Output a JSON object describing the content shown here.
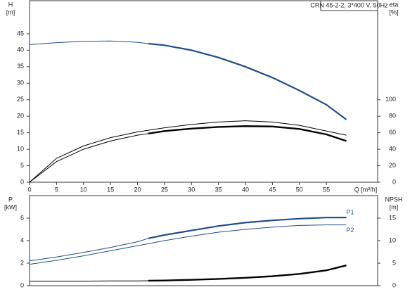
{
  "chart_data": [
    {
      "type": "line",
      "title": "CRN 45-2-2, 3*400 V, 50Hz",
      "x_label": "Q [m³/h]",
      "y_label": "H",
      "y_unit": "[m]",
      "y2_label": "eta",
      "y2_unit": "[%]",
      "xlim": [
        0,
        64.5
      ],
      "xticks": [
        0,
        5,
        10,
        15,
        20,
        25,
        30,
        35,
        40,
        45,
        50,
        55
      ],
      "ylim": [
        0,
        55
      ],
      "yticks": [
        0,
        5,
        10,
        15,
        20,
        25,
        30,
        35,
        40,
        45
      ],
      "y2lim": [
        0,
        220
      ],
      "y2ticks": [
        0,
        20,
        40,
        60,
        80,
        100
      ],
      "series": [
        {
          "color": "#1f4e8c",
          "width": 1,
          "x": [
            0,
            5,
            10,
            15,
            20,
            22
          ],
          "values": [
            41.7,
            42.3,
            42.7,
            42.8,
            42.4,
            42.0
          ]
        },
        {
          "color": "#1f4e8c",
          "width": 2.2,
          "x": [
            22,
            25,
            30,
            35,
            40,
            45,
            50,
            55,
            58.7
          ],
          "values": [
            42.0,
            41.5,
            40.0,
            37.8,
            35.0,
            31.7,
            27.8,
            23.5,
            19.0
          ]
        },
        {
          "color": "#000000",
          "width": 1,
          "axis": "y2",
          "x": [
            0,
            5,
            10,
            15,
            20,
            25,
            30,
            35,
            40,
            45,
            50,
            55,
            58.7
          ],
          "values": [
            0,
            29,
            44,
            54,
            61,
            66,
            70,
            73,
            74.5,
            73,
            69,
            62,
            57
          ]
        },
        {
          "color": "#000000",
          "width": 1,
          "axis": "y2",
          "x": [
            0,
            5,
            10,
            15,
            20,
            22
          ],
          "values": [
            0,
            25,
            40,
            50,
            57,
            59
          ]
        },
        {
          "color": "#000000",
          "width": 2.4,
          "axis": "y2",
          "x": [
            22,
            25,
            30,
            35,
            40,
            45,
            50,
            55,
            58.7
          ],
          "values": [
            59,
            62,
            65,
            67,
            68,
            67.5,
            64.5,
            58,
            50
          ]
        }
      ]
    },
    {
      "type": "line",
      "y_label": "P",
      "y_unit": "[kW]",
      "y2_label": "NPSH",
      "y2_unit": "[m]",
      "xlim": [
        0,
        64.5
      ],
      "ylim": [
        0,
        8
      ],
      "yticks": [
        0,
        2,
        4,
        6
      ],
      "y2lim": [
        0,
        20
      ],
      "y2ticks": [
        0,
        5,
        10,
        15
      ],
      "series": [
        {
          "color": "#1f4e8c",
          "width": 1,
          "x": [
            0,
            5,
            10,
            15,
            20,
            22
          ],
          "values": [
            2.2,
            2.55,
            2.95,
            3.4,
            3.9,
            4.2
          ]
        },
        {
          "name": "P1",
          "color": "#1f4e8c",
          "width": 2.2,
          "x": [
            22,
            25,
            30,
            35,
            40,
            45,
            50,
            55,
            58.7
          ],
          "values": [
            4.2,
            4.5,
            4.9,
            5.3,
            5.6,
            5.8,
            5.95,
            6.05,
            6.05
          ]
        },
        {
          "name": "P2",
          "color": "#1f4e8c",
          "width": 1,
          "x": [
            0,
            5,
            10,
            15,
            20,
            25,
            30,
            35,
            40,
            45,
            50,
            55,
            58.7
          ],
          "values": [
            1.9,
            2.25,
            2.65,
            3.1,
            3.55,
            4.0,
            4.4,
            4.75,
            5.0,
            5.2,
            5.35,
            5.4,
            5.4
          ]
        },
        {
          "color": "#000000",
          "width": 1,
          "axis": "y2",
          "x": [
            0,
            5,
            10,
            15,
            20,
            22
          ],
          "values": [
            1.0,
            1.0,
            1.0,
            1.05,
            1.05,
            1.1
          ]
        },
        {
          "color": "#000000",
          "width": 2.4,
          "axis": "y2",
          "x": [
            22,
            25,
            30,
            35,
            40,
            45,
            50,
            55,
            58.7
          ],
          "values": [
            1.1,
            1.15,
            1.3,
            1.5,
            1.75,
            2.1,
            2.6,
            3.4,
            4.5
          ]
        }
      ]
    }
  ]
}
